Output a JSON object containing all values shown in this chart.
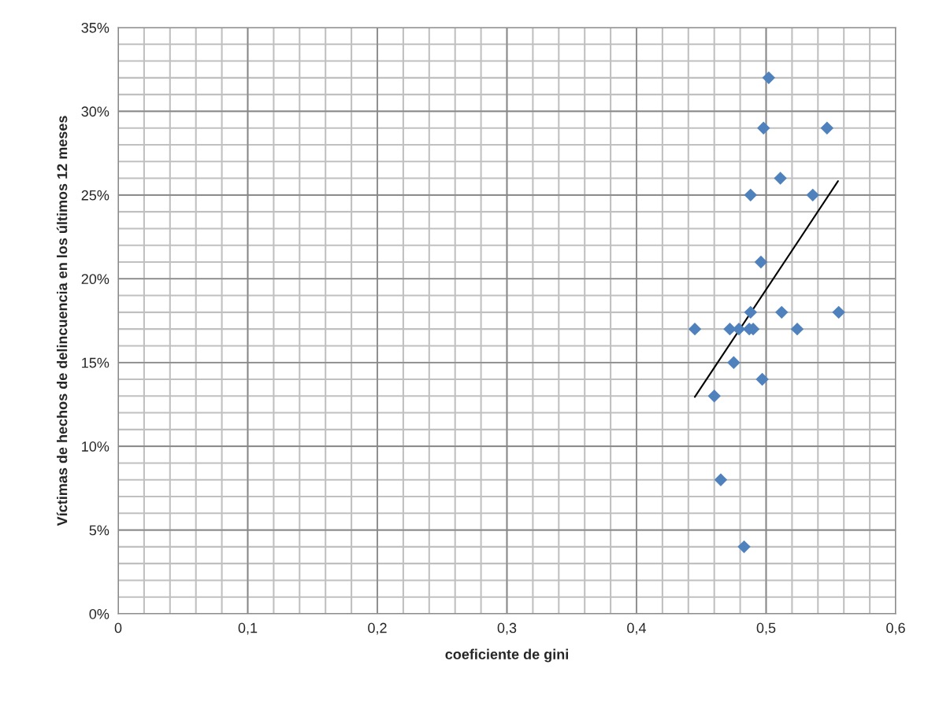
{
  "chart_data": {
    "type": "scatter",
    "xlabel": "coeficiente de gini",
    "ylabel": "Víctimas de hechos de delincuencia en los últimos 12 meses",
    "series": [
      {
        "color": "#4f81bd",
        "marker": "diamond",
        "x": [
          0.502,
          0.498,
          0.547,
          0.511,
          0.488,
          0.536,
          0.496,
          0.488,
          0.512,
          0.556,
          0.445,
          0.472,
          0.479,
          0.487,
          0.49,
          0.524,
          0.475,
          0.497,
          0.46,
          0.465,
          0.483
        ],
        "values": [
          32,
          29,
          29,
          26,
          25,
          25,
          21,
          18,
          18,
          18,
          17,
          17,
          17,
          17,
          17,
          17,
          15,
          14,
          13,
          8,
          4
        ]
      },
      {
        "type": "line",
        "color": "#000000",
        "marker": "none",
        "x": [
          0.445,
          0.5555
        ],
        "values": [
          12.95,
          25.83
        ]
      }
    ],
    "xlim": [
      0,
      0.6
    ],
    "ylim": [
      0,
      35
    ],
    "xticks": [
      0,
      {
        "value": 0.1,
        "label": "0,1"
      },
      {
        "value": 0.2,
        "label": "0,2"
      },
      {
        "value": 0.3,
        "label": "0,3"
      },
      {
        "value": 0.4,
        "label": "0,4"
      },
      {
        "value": 0.5,
        "label": "0,5"
      },
      {
        "value": 0.6,
        "label": "0,6"
      }
    ],
    "yticks": [
      {
        "value": 0,
        "label": "0%"
      },
      {
        "value": 5,
        "label": "5%"
      },
      {
        "value": 10,
        "label": "10%"
      },
      {
        "value": 15,
        "label": "15%"
      },
      {
        "value": 20,
        "label": "20%"
      },
      {
        "value": 25,
        "label": "25%"
      },
      {
        "value": 30,
        "label": "30%"
      },
      {
        "value": 35,
        "label": "35%"
      }
    ],
    "grid": true,
    "legend": false
  }
}
